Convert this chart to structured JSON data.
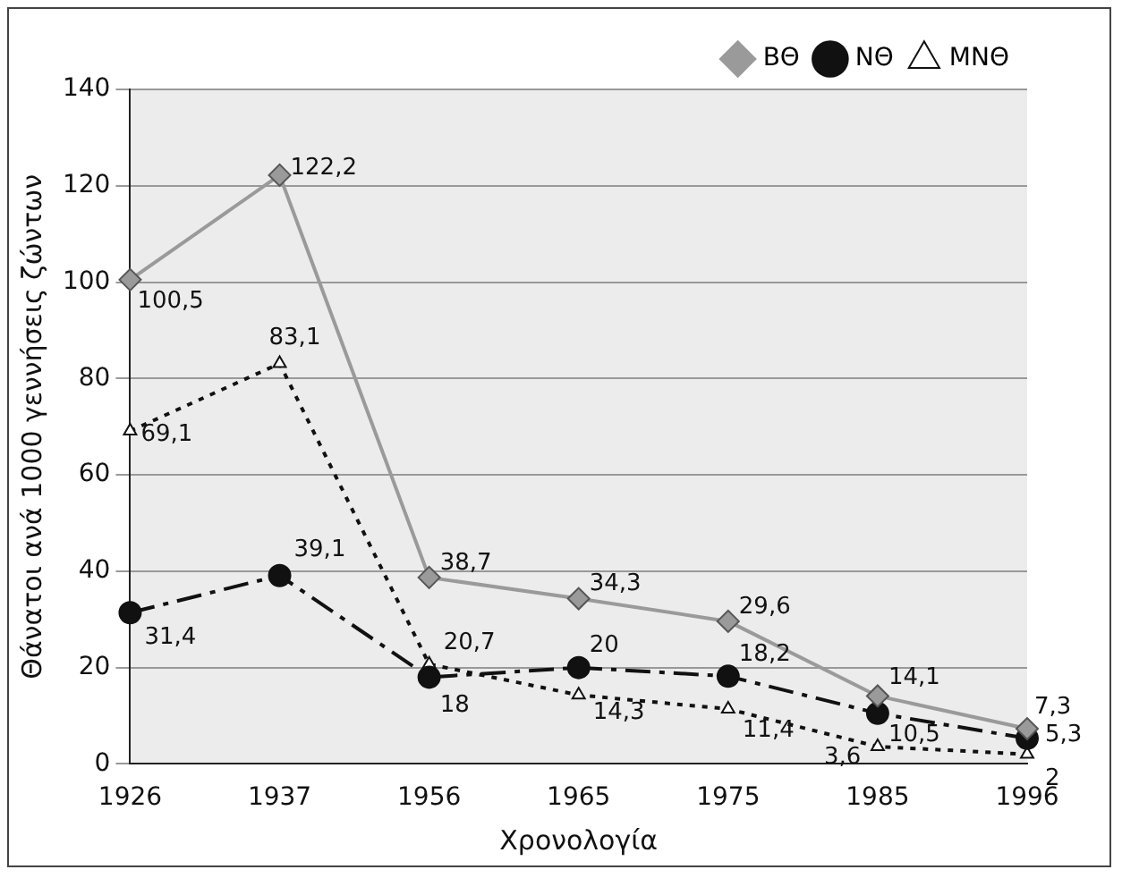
{
  "chart_data": {
    "type": "line",
    "xlabel": "Χρονολογία",
    "ylabel": "Θάνατοι ανά 1000 γεννήσεις ζώντων",
    "categories": [
      "1926",
      "1937",
      "1956",
      "1965",
      "1975",
      "1985",
      "1996"
    ],
    "ylim": [
      0,
      140
    ],
    "yticks": [
      0,
      20,
      40,
      60,
      80,
      100,
      120,
      140
    ],
    "grid": "y",
    "legend": "top right",
    "series": [
      {
        "name": "ΒΘ",
        "color": "#9a9a9a",
        "marker": "diamond",
        "line_style": "solid",
        "values": [
          100.5,
          122.2,
          38.7,
          34.3,
          29.6,
          14.1,
          7.3
        ],
        "value_labels": [
          "100,5",
          "122,2",
          "38,7",
          "34,3",
          "29,6",
          "14,1",
          "7,3"
        ]
      },
      {
        "name": "ΝΘ",
        "color": "#111111",
        "marker": "circle",
        "line_style": "dashed",
        "values": [
          31.4,
          39.1,
          18,
          20,
          18.2,
          10.5,
          5.3
        ],
        "value_labels": [
          "31,4",
          "39,1",
          "18",
          "20",
          "18,2",
          "10,5",
          "5,3"
        ]
      },
      {
        "name": "ΜΝΘ",
        "color": "#111111",
        "marker": "triangle",
        "line_style": "dotted",
        "values": [
          69.1,
          83.1,
          20.7,
          14.3,
          11.4,
          3.6,
          2
        ],
        "value_labels": [
          "69,1",
          "83,1",
          "20,7",
          "14,3",
          "11,4",
          "3,6",
          "2"
        ]
      }
    ]
  }
}
